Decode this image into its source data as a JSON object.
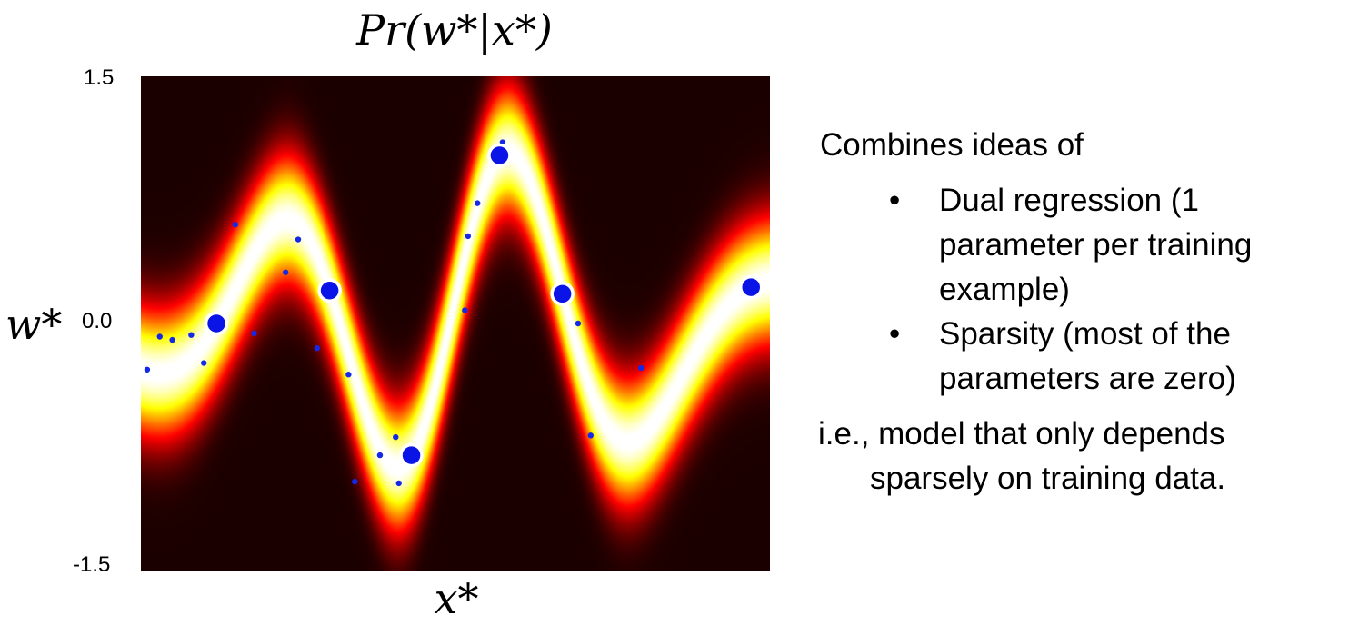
{
  "chart_data": {
    "type": "heatmap",
    "title": "Pr(w*|x*)",
    "xlabel": "x*",
    "ylabel": "w*",
    "ylim": [
      -1.5,
      1.5
    ],
    "y_tick_labels": [
      "1.5",
      "0.0",
      "-1.5"
    ],
    "colormap": "hot",
    "sparse_points": [
      {
        "x": 0.12,
        "y": 0.0
      },
      {
        "x": 0.3,
        "y": 0.2
      },
      {
        "x": 0.43,
        "y": -0.8
      },
      {
        "x": 0.57,
        "y": 1.02
      },
      {
        "x": 0.67,
        "y": 0.18
      },
      {
        "x": 0.97,
        "y": 0.22
      }
    ],
    "training_points": [
      {
        "x": 0.01,
        "y": -0.28
      },
      {
        "x": 0.03,
        "y": -0.08
      },
      {
        "x": 0.05,
        "y": -0.1
      },
      {
        "x": 0.08,
        "y": -0.07
      },
      {
        "x": 0.1,
        "y": -0.24
      },
      {
        "x": 0.15,
        "y": 0.6
      },
      {
        "x": 0.18,
        "y": -0.06
      },
      {
        "x": 0.23,
        "y": 0.31
      },
      {
        "x": 0.25,
        "y": 0.51
      },
      {
        "x": 0.28,
        "y": -0.15
      },
      {
        "x": 0.33,
        "y": -0.31
      },
      {
        "x": 0.34,
        "y": -0.96
      },
      {
        "x": 0.38,
        "y": -0.8
      },
      {
        "x": 0.405,
        "y": -0.69
      },
      {
        "x": 0.41,
        "y": -0.97
      },
      {
        "x": 0.515,
        "y": 0.08
      },
      {
        "x": 0.52,
        "y": 0.53
      },
      {
        "x": 0.535,
        "y": 0.73
      },
      {
        "x": 0.575,
        "y": 1.1
      },
      {
        "x": 0.695,
        "y": 0.0
      },
      {
        "x": 0.715,
        "y": -0.68
      },
      {
        "x": 0.795,
        "y": -0.27
      }
    ],
    "colors": {
      "sparse_point_fill": "#0a14e6",
      "sparse_point_stroke": "#ffffff",
      "training_point": "#1428e8"
    }
  },
  "side_text": {
    "intro": "Combines ideas of",
    "bullets": [
      {
        "symbol": "•",
        "lines": [
          "Dual regression (1",
          "parameter per training",
          "example)"
        ]
      },
      {
        "symbol": "•",
        "lines": [
          "Sparsity  (most of the",
          "parameters are zero)"
        ]
      }
    ],
    "conclusion_line1": "i.e., model that only depends",
    "conclusion_line2": "sparsely on training data."
  }
}
